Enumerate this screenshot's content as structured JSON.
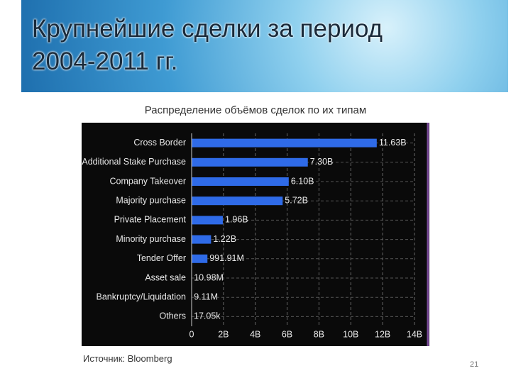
{
  "slide": {
    "title": "Крупнейшие сделки за период\n2004-2011 гг.",
    "source": "Источник: Bloomberg",
    "page": "21"
  },
  "chart_data": {
    "type": "bar",
    "orientation": "horizontal",
    "title": "Распределение объёмов сделок по их типам",
    "categories": [
      "Cross Border",
      "Additional Stake Purchase",
      "Company Takeover",
      "Majority purchase",
      "Private Placement",
      "Minority purchase",
      "Tender Offer",
      "Asset sale",
      "Bankruptcy/Liquidation",
      "Others"
    ],
    "values": [
      11.63,
      7.3,
      6.1,
      5.72,
      1.96,
      1.22,
      0.99191,
      0.01098,
      0.00911,
      1.705e-05
    ],
    "value_labels": [
      "11.63B",
      "7.30B",
      "6.10B",
      "5.72B",
      "1.96B",
      "1.22B",
      "991.91M",
      "10.98M",
      "9.11M",
      "17.05k"
    ],
    "color": "#2f6be8",
    "xlim": [
      0,
      14
    ],
    "xticks": [
      0,
      {
        "value": 2,
        "label": "2B"
      },
      {
        "value": 4,
        "label": "4B"
      },
      {
        "value": 6,
        "label": "6B"
      },
      {
        "value": 8,
        "label": "8B"
      },
      {
        "value": 10,
        "label": "10B"
      },
      {
        "value": 12,
        "label": "12B"
      },
      {
        "value": 14,
        "label": "14B"
      }
    ],
    "grid": true
  }
}
